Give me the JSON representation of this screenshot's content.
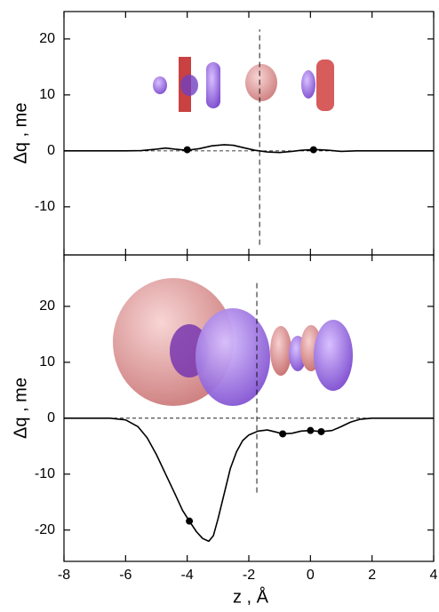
{
  "chart_data": [
    {
      "type": "line",
      "ylabel": "Δq , me",
      "xlim": [
        -8,
        4
      ],
      "ylim": [
        -18.6,
        24.9
      ],
      "yticks": [
        -10,
        0,
        10,
        20
      ],
      "x": [
        -8,
        -6,
        -5.5,
        -5,
        -4.7,
        -4.4,
        -4,
        -3.6,
        -3.2,
        -2.8,
        -2.5,
        -2.2,
        -1.8,
        -1.4,
        -1.0,
        -0.6,
        -0.3,
        0,
        0.3,
        0.6,
        1,
        1.5,
        2,
        4
      ],
      "series": [
        {
          "color": "#000000",
          "values": [
            0,
            0,
            0.05,
            0.3,
            0.5,
            0.3,
            0.1,
            0.4,
            0.9,
            1.1,
            1.0,
            0.6,
            0.1,
            -0.2,
            -0.3,
            -0.1,
            0.1,
            0.2,
            0.2,
            0.1,
            -0.1,
            0,
            0,
            0
          ]
        }
      ],
      "points": {
        "x": [
          -4.0,
          0.1
        ],
        "values": [
          0.2,
          0.2
        ]
      },
      "hline": 0,
      "vline": {
        "x": -1.65,
        "ymin": -16.8,
        "ymax": 21.7
      }
    },
    {
      "type": "line",
      "ylabel": "Δq , me",
      "xlabel": "z , Å",
      "xlim": [
        -8,
        4
      ],
      "xticks": [
        -8,
        -6,
        -4,
        -2,
        0,
        2,
        4
      ],
      "ylim": [
        -25.6,
        29.2
      ],
      "yticks": [
        -20,
        -10,
        0,
        10,
        20
      ],
      "x": [
        -8,
        -6.5,
        -6,
        -5.6,
        -5.3,
        -5,
        -4.7,
        -4.4,
        -4.15,
        -3.93,
        -3.7,
        -3.5,
        -3.3,
        -3.15,
        -3,
        -2.8,
        -2.6,
        -2.4,
        -2.2,
        -2,
        -1.7,
        -1.4,
        -1.1,
        -0.9,
        -0.6,
        -0.3,
        0,
        0.35,
        0.7,
        1.0,
        1.3,
        1.6,
        2,
        4
      ],
      "series": [
        {
          "color": "#000000",
          "values": [
            0,
            0,
            -0.3,
            -1.5,
            -3.5,
            -6.5,
            -10,
            -13.5,
            -16.5,
            -18.4,
            -20.3,
            -21.5,
            -22,
            -21,
            -18,
            -13.5,
            -9,
            -6,
            -4,
            -3,
            -2.3,
            -2.1,
            -2.5,
            -2.8,
            -2.7,
            -2.3,
            -2.2,
            -2.4,
            -2.2,
            -1.5,
            -0.7,
            -0.2,
            0,
            0
          ]
        }
      ],
      "points": {
        "x": [
          -3.93,
          -0.9,
          0,
          0.35
        ],
        "values": [
          -18.4,
          -2.8,
          -2.2,
          -2.4
        ]
      },
      "hline": 0,
      "vline": {
        "x": -1.74,
        "ymin": -13.3,
        "ymax": 24.8
      }
    }
  ]
}
